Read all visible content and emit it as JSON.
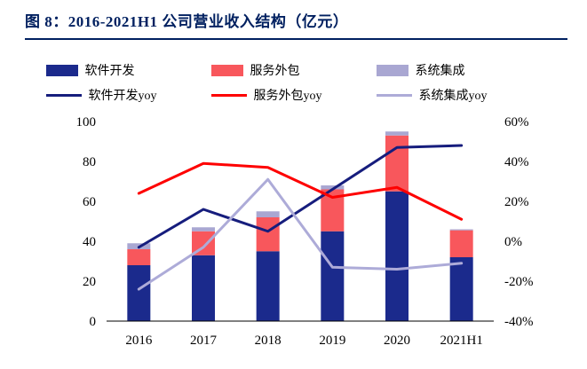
{
  "page": {
    "title": "图 8：2016-2021H1 公司营业收入结构（亿元）"
  },
  "colors": {
    "title_navy": "#002060",
    "bar_navy": "#1B2A8C",
    "bar_red": "#F8575C",
    "bar_purple": "#A9A7D2",
    "line_navy": "#161D7D",
    "line_red": "#FE0000",
    "line_purple": "#ADABD8",
    "axis_text": "#000000"
  },
  "chart_data": {
    "type": "bar",
    "overlay": "line",
    "stacked": true,
    "title": "2016-2021H1 公司营业收入结构（亿元）",
    "categories": [
      "2016",
      "2017",
      "2018",
      "2019",
      "2020",
      "2021H1"
    ],
    "bar_series": [
      {
        "key": "software-dev",
        "name": "软件开发",
        "color": "#1B2A8C",
        "values": [
          28,
          33,
          35,
          45,
          65,
          32
        ]
      },
      {
        "key": "service-outsourcing",
        "name": "服务外包",
        "color": "#F8575C",
        "values": [
          8,
          12,
          17,
          21,
          28,
          13.5
        ]
      },
      {
        "key": "system-integration",
        "name": "系统集成",
        "color": "#A9A7D2",
        "values": [
          3,
          2,
          3,
          2,
          2,
          0.5
        ]
      }
    ],
    "line_series": [
      {
        "key": "software-dev-yoy",
        "name": "软件开发yoy",
        "color": "#161D7D",
        "values_pct": [
          -3,
          16,
          5,
          26,
          47,
          48
        ]
      },
      {
        "key": "service-outsourcing-yoy",
        "name": "服务外包yoy",
        "color": "#FE0000",
        "values_pct": [
          24,
          39,
          37,
          22,
          27,
          11
        ]
      },
      {
        "key": "system-integration-yoy",
        "name": "系统集成yoy",
        "color": "#ADABD8",
        "values_pct": [
          -24,
          -3,
          31,
          -13,
          -14,
          -11
        ]
      }
    ],
    "left_axis": {
      "min": 0,
      "max": 100,
      "ticks": [
        100,
        80,
        60,
        40,
        20,
        0
      ]
    },
    "right_axis": {
      "min": -40,
      "max": 60,
      "ticks": [
        "60%",
        "40%",
        "20%",
        "0%",
        "-20%",
        "-40%"
      ]
    },
    "grid": false,
    "legend_position": "top",
    "xlabel": "",
    "ylabel": ""
  }
}
